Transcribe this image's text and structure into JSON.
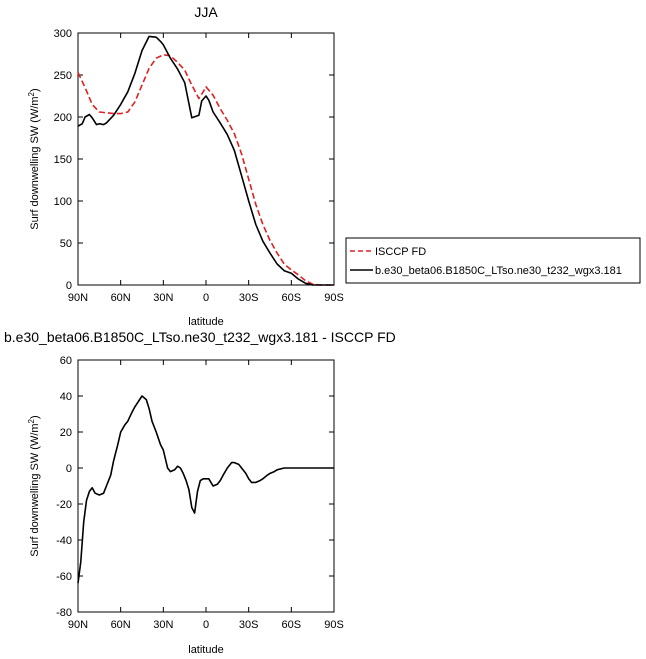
{
  "chart_data": [
    {
      "type": "line",
      "title": "JJA",
      "xlabel": "latitude",
      "ylabel": "Surf downwelling SW (W/m²)",
      "xlim": [
        90,
        -90
      ],
      "ylim": [
        0,
        300
      ],
      "x_ticks": [
        90,
        60,
        30,
        0,
        -30,
        -60,
        -90
      ],
      "x_tick_labels": [
        "90N",
        "60N",
        "30N",
        "0",
        "30S",
        "60S",
        "90S"
      ],
      "y_ticks": [
        0,
        50,
        100,
        150,
        200,
        250,
        300
      ],
      "y_tick_labels": [
        "0",
        "50",
        "100",
        "150",
        "200",
        "250",
        "300"
      ],
      "legend_position": "right",
      "series": [
        {
          "name": "ISCCP FD",
          "color": "#e02020",
          "style": "dashed",
          "x": [
            90,
            85,
            80,
            75,
            70,
            65,
            60,
            55,
            50,
            45,
            40,
            35,
            30,
            25,
            20,
            15,
            10,
            5,
            2,
            0,
            -5,
            -10,
            -15,
            -20,
            -25,
            -30,
            -35,
            -40,
            -45,
            -50,
            -55,
            -60,
            -65,
            -70,
            -75,
            -80,
            -85,
            -90
          ],
          "y": [
            253,
            235,
            215,
            206,
            205,
            204,
            204,
            206,
            218,
            238,
            258,
            270,
            274,
            273,
            265,
            256,
            238,
            222,
            230,
            236,
            226,
            210,
            196,
            180,
            156,
            126,
            96,
            72,
            53,
            38,
            25,
            18,
            12,
            5,
            1,
            0,
            0,
            0
          ]
        },
        {
          "name": "b.e30_beta06.B1850C_LTso.ne30_t232_wgx3.181",
          "color": "#000000",
          "style": "solid",
          "x": [
            90,
            87,
            85,
            82,
            80,
            77,
            75,
            72,
            70,
            65,
            60,
            55,
            50,
            45,
            40,
            35,
            32,
            30,
            25,
            20,
            15,
            10,
            5,
            3,
            0,
            -2,
            -5,
            -10,
            -15,
            -20,
            -25,
            -30,
            -35,
            -40,
            -45,
            -50,
            -55,
            -60,
            -65,
            -70,
            -75,
            -80,
            -85,
            -90
          ],
          "y": [
            189,
            192,
            200,
            203,
            199,
            191,
            192,
            191,
            193,
            202,
            215,
            230,
            252,
            279,
            296,
            295,
            290,
            286,
            270,
            257,
            241,
            199,
            202,
            219,
            225,
            220,
            206,
            193,
            179,
            160,
            130,
            100,
            72,
            52,
            38,
            25,
            17,
            14,
            7,
            2,
            0,
            0,
            0,
            0
          ]
        }
      ]
    },
    {
      "type": "line",
      "title": "b.e30_beta06.B1850C_LTso.ne30_t232_wgx3.181 - ISCCP FD",
      "xlabel": "latitude",
      "ylabel": "Surf downwelling SW (W/m²)",
      "xlim": [
        90,
        -90
      ],
      "ylim": [
        -80,
        60
      ],
      "x_ticks": [
        90,
        60,
        30,
        0,
        -30,
        -60,
        -90
      ],
      "x_tick_labels": [
        "90N",
        "60N",
        "30N",
        "0",
        "30S",
        "60S",
        "90S"
      ],
      "y_ticks": [
        -80,
        -60,
        -40,
        -20,
        0,
        20,
        40,
        60
      ],
      "y_tick_labels": [
        "-80",
        "-60",
        "-40",
        "-20",
        "0",
        "20",
        "40",
        "60"
      ],
      "series": [
        {
          "color": "#000000",
          "style": "solid",
          "x": [
            90,
            88,
            86,
            84,
            82,
            80,
            78,
            75,
            72,
            70,
            67,
            65,
            62,
            60,
            57,
            55,
            52,
            50,
            45,
            42,
            40,
            38,
            35,
            32,
            30,
            27,
            25,
            22,
            20,
            18,
            16,
            14,
            12,
            10,
            8,
            6,
            4,
            2,
            0,
            -2,
            -5,
            -8,
            -10,
            -12,
            -15,
            -18,
            -20,
            -23,
            -25,
            -28,
            -30,
            -32,
            -35,
            -38,
            -40,
            -43,
            -45,
            -48,
            -50,
            -55,
            -60,
            -65,
            -70,
            -75,
            -80,
            -85,
            -90
          ],
          "y": [
            -64,
            -52,
            -30,
            -18,
            -13,
            -11,
            -14,
            -15,
            -14,
            -10,
            -4,
            4,
            13,
            20,
            24,
            26,
            31,
            34,
            40,
            38,
            33,
            26,
            20,
            13,
            10,
            0,
            -2,
            -1,
            1,
            0,
            -3,
            -7,
            -12,
            -22,
            -25,
            -13,
            -7,
            -6,
            -6,
            -6,
            -10,
            -9,
            -7,
            -4,
            0,
            3,
            3,
            2,
            0,
            -3,
            -6,
            -8,
            -8,
            -7,
            -6,
            -4,
            -3,
            -2,
            -1,
            0,
            0,
            0,
            0,
            0,
            0,
            0,
            0
          ]
        }
      ]
    }
  ]
}
